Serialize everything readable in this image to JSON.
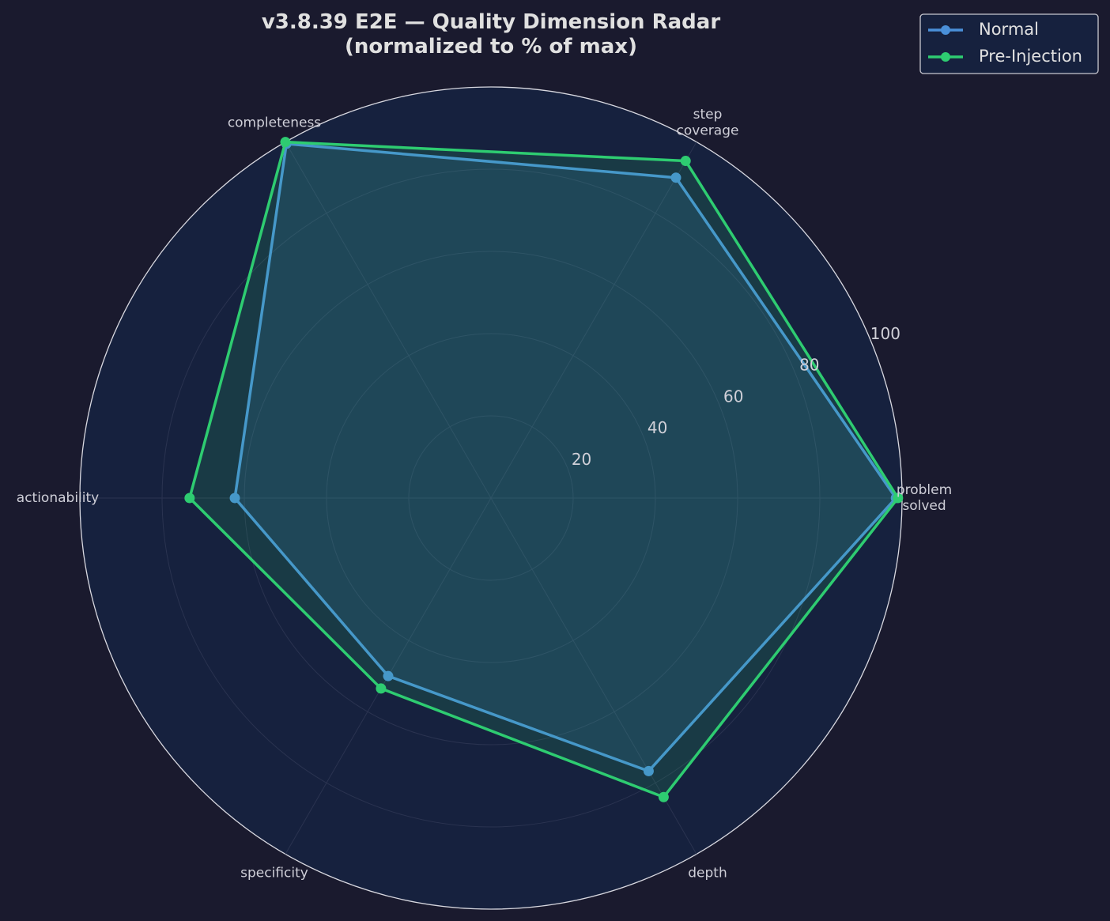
{
  "chart_data": {
    "type": "radar",
    "title": "v3.8.39 E2E — Quality Dimension Radar\n(normalized to % of max)",
    "categories": [
      "problem\nsolved",
      "step\ncoverage",
      "completeness",
      "actionability",
      "specificity",
      "depth"
    ],
    "series": [
      {
        "name": "Normal",
        "color": "#4a90d9",
        "values": [
          98.5,
          90,
          99.5,
          62.3,
          50,
          76.7
        ]
      },
      {
        "name": "Pre-Injection",
        "color": "#2ecc71",
        "values": [
          99,
          94.7,
          100,
          73.3,
          53.5,
          84
        ]
      }
    ],
    "ylim": [
      0,
      100
    ],
    "yticks": [
      20,
      40,
      60,
      80,
      100
    ],
    "grid": true,
    "legend": "upper right"
  }
}
